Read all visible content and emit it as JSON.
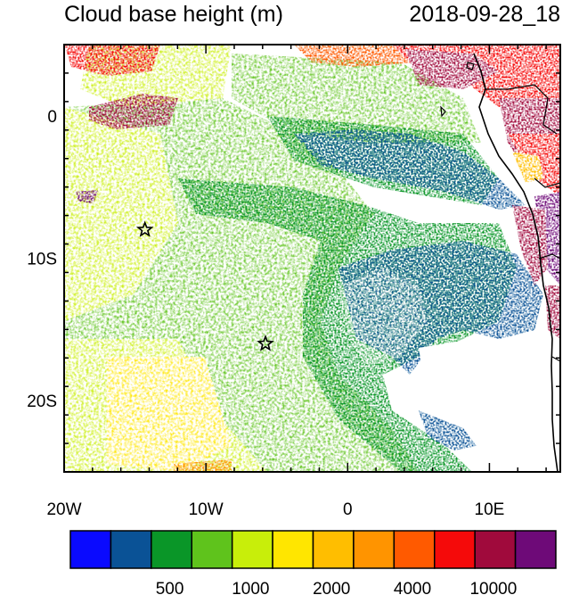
{
  "title_left": "Cloud base height (m)",
  "title_right": "2018-09-28_18",
  "axes": {
    "lon_range": [
      -20,
      15
    ],
    "lat_range": [
      -25,
      5
    ],
    "x_ticks": [
      {
        "value": -20,
        "label": "20W"
      },
      {
        "value": -10,
        "label": "10W"
      },
      {
        "value": 0,
        "label": "0"
      },
      {
        "value": 10,
        "label": "10E"
      }
    ],
    "y_ticks": [
      {
        "value": 0,
        "label": "0"
      },
      {
        "value": -10,
        "label": "10S"
      },
      {
        "value": -20,
        "label": "20S"
      }
    ]
  },
  "markers": [
    {
      "name": "star-marker-1",
      "lon": -14.3,
      "lat": -8.0
    },
    {
      "name": "star-marker-2",
      "lon": -5.8,
      "lat": -16.0
    }
  ],
  "colorbar": {
    "colors": [
      "#0a0aff",
      "#0a5296",
      "#0a9628",
      "#5fc31c",
      "#c8ee0a",
      "#ffe600",
      "#ffbe00",
      "#ff9400",
      "#ff5a00",
      "#f50a0a",
      "#a00a3c",
      "#6e0a78"
    ],
    "labels": [
      {
        "after_box": 2,
        "text": "500"
      },
      {
        "after_box": 4,
        "text": "1000"
      },
      {
        "after_box": 6,
        "text": "2000"
      },
      {
        "after_box": 8,
        "text": "4000"
      },
      {
        "after_box": 10,
        "text": "10000"
      }
    ]
  }
}
